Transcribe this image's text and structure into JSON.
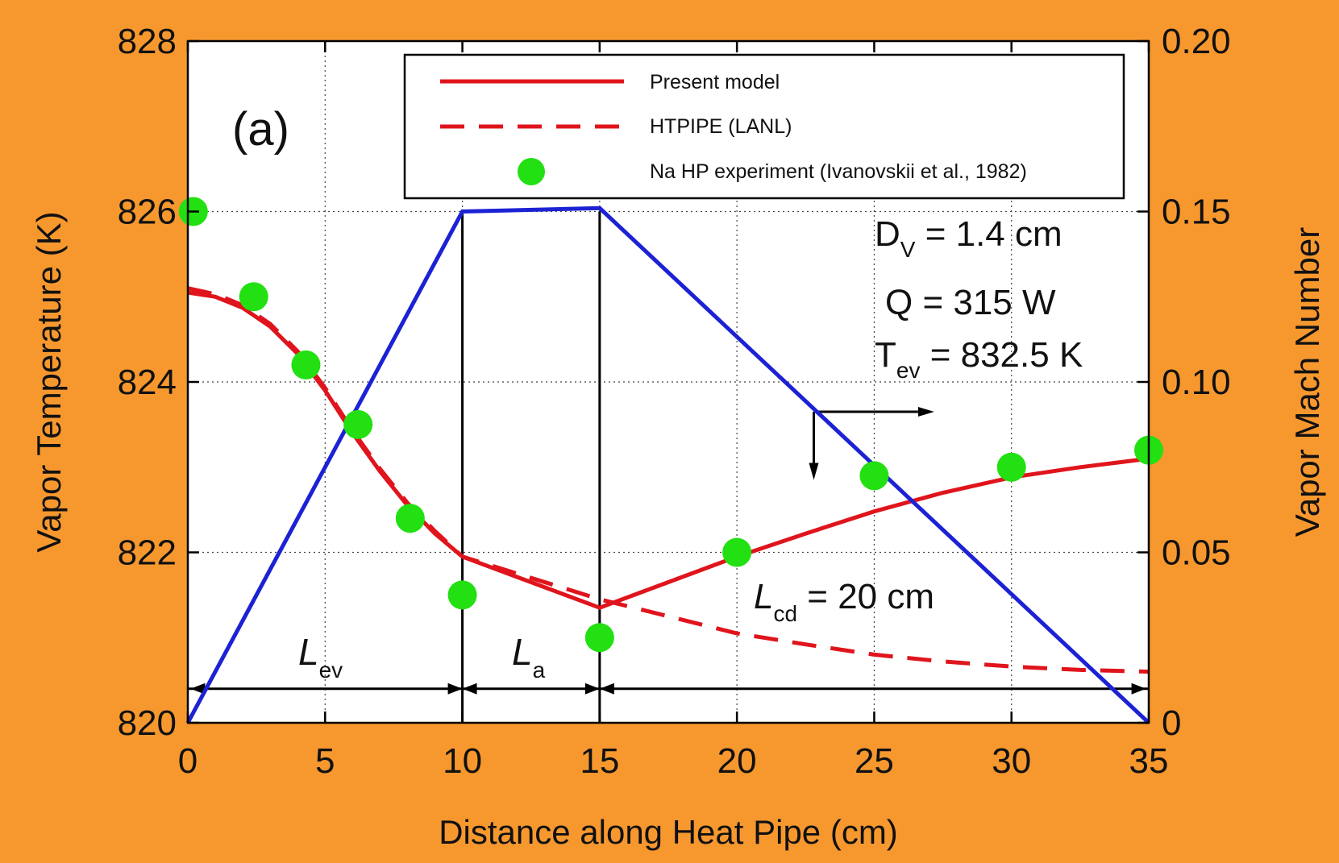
{
  "chart_data": {
    "type": "line",
    "panel_label": "(a)",
    "xlabel": "Distance along Heat Pipe (cm)",
    "ylabel": "Vapor Temperature (K)",
    "y2label": "Vapor Mach Number",
    "xlim": [
      0,
      35
    ],
    "ylim": [
      820,
      828
    ],
    "y2lim": [
      0,
      0.2
    ],
    "xticks": [
      0,
      5,
      10,
      15,
      20,
      25,
      30,
      35
    ],
    "yticks": [
      820,
      822,
      824,
      826,
      828
    ],
    "y2ticks": [
      0,
      0.05,
      0.1,
      0.15,
      0.2
    ],
    "xtick_labels": [
      "0",
      "5",
      "10",
      "15",
      "20",
      "25",
      "30",
      "35"
    ],
    "ytick_labels": [
      "820",
      "822",
      "824",
      "826",
      "828"
    ],
    "y2tick_labels": [
      "0",
      "0.05",
      "0.10",
      "0.15",
      "0.20"
    ],
    "grid": true,
    "legend_position": "top-right",
    "colors": {
      "background": "#F7982F",
      "plot_area": "#FFFFFF",
      "temperature": "#E0141C",
      "mach": "#1C22D4",
      "experiment": "#22E011",
      "structure": "#000000"
    },
    "series": [
      {
        "name": "Present model",
        "style": "solid",
        "axis": "left",
        "x": [
          0,
          1,
          2,
          3,
          4,
          5,
          6,
          7,
          8,
          9,
          10,
          12.5,
          15,
          17.5,
          20,
          22.5,
          25,
          27.5,
          30,
          32.5,
          35
        ],
        "y": [
          825.05,
          825.0,
          824.87,
          824.65,
          824.33,
          823.9,
          823.4,
          822.95,
          822.55,
          822.22,
          821.95,
          821.65,
          821.35,
          821.65,
          821.95,
          822.22,
          822.48,
          822.7,
          822.88,
          823.0,
          823.1
        ]
      },
      {
        "name": "HTPIPE (LANL)",
        "style": "dashed",
        "axis": "left",
        "x": [
          0,
          1,
          2,
          3,
          4,
          5,
          6,
          7,
          8,
          9,
          10,
          12.5,
          15,
          17.5,
          20,
          22.5,
          25,
          27.5,
          30,
          32.5,
          35
        ],
        "y": [
          825.1,
          825.03,
          824.9,
          824.68,
          824.36,
          823.93,
          823.43,
          822.98,
          822.58,
          822.25,
          821.95,
          821.7,
          821.45,
          821.25,
          821.05,
          820.92,
          820.8,
          820.72,
          820.66,
          820.62,
          820.6
        ]
      },
      {
        "name": "Na HP experiment (Ivanovskii et al., 1982)",
        "style": "markers",
        "axis": "left",
        "x": [
          0.2,
          2.4,
          4.3,
          6.2,
          8.1,
          10.0,
          12.5,
          15.0,
          20.0,
          25.0,
          30.0,
          35.0
        ],
        "y": [
          826.0,
          825.0,
          824.2,
          823.5,
          822.4,
          821.5,
          826.5,
          821.0,
          822.0,
          822.9,
          823.0,
          823.2
        ]
      },
      {
        "name": "Vapor Mach Number",
        "style": "solid",
        "axis": "right",
        "x": [
          0,
          10,
          15,
          35
        ],
        "y": [
          0.0,
          0.15,
          0.151,
          0.0
        ]
      }
    ],
    "annotations": {
      "dv_label": "D",
      "dv_sub": "V",
      "dv_value": " = 1.4 cm",
      "q_text": "Q = 315 W",
      "tev_label": "T",
      "tev_sub": "ev",
      "tev_value": " = 832.5 K",
      "lev_label": "L",
      "lev_sub": "ev",
      "la_label": "L",
      "la_sub": "a",
      "lcd_label": "L",
      "lcd_sub": "cd",
      "lcd_value": " = 20 cm"
    }
  }
}
